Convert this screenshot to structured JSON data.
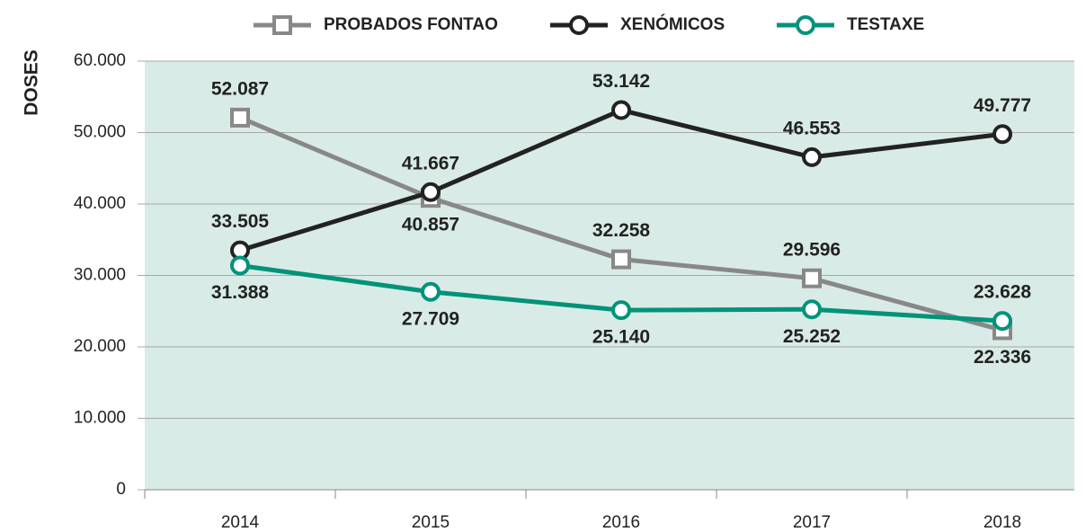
{
  "chart_data": {
    "type": "line",
    "ylabel": "DOSES",
    "categories": [
      "2014",
      "2015",
      "2016",
      "2017",
      "2018"
    ],
    "series": [
      {
        "name": "PROBADOS FONTAO",
        "color": "#888888",
        "marker": "square",
        "values": [
          52087,
          40857,
          32258,
          29596,
          22336
        ],
        "value_labels": [
          "52.087",
          "40.857",
          "32.258",
          "29.596",
          "22.336"
        ]
      },
      {
        "name": "XENÓMICOS",
        "color": "#222222",
        "marker": "circle",
        "values": [
          33505,
          41667,
          53142,
          46553,
          49777
        ],
        "value_labels": [
          "33.505",
          "41.667",
          "53.142",
          "46.553",
          "49.777"
        ]
      },
      {
        "name": "TESTAXE",
        "color": "#00937a",
        "marker": "circle",
        "values": [
          31388,
          27709,
          25140,
          25252,
          23628
        ],
        "value_labels": [
          "31.388",
          "27.709",
          "25.140",
          "25.252",
          "23.628"
        ]
      }
    ],
    "ylim": [
      0,
      60000
    ],
    "yticks": [
      0,
      {
        "value": 10000,
        "label": "10.000"
      },
      {
        "value": 20000,
        "label": "20.000"
      },
      {
        "value": 30000,
        "label": "30.000"
      },
      {
        "value": 40000,
        "label": "40.000"
      },
      {
        "value": 50000,
        "label": "50.000"
      },
      {
        "value": 60000,
        "label": "60.000"
      }
    ],
    "grid": true,
    "legend": "top"
  }
}
